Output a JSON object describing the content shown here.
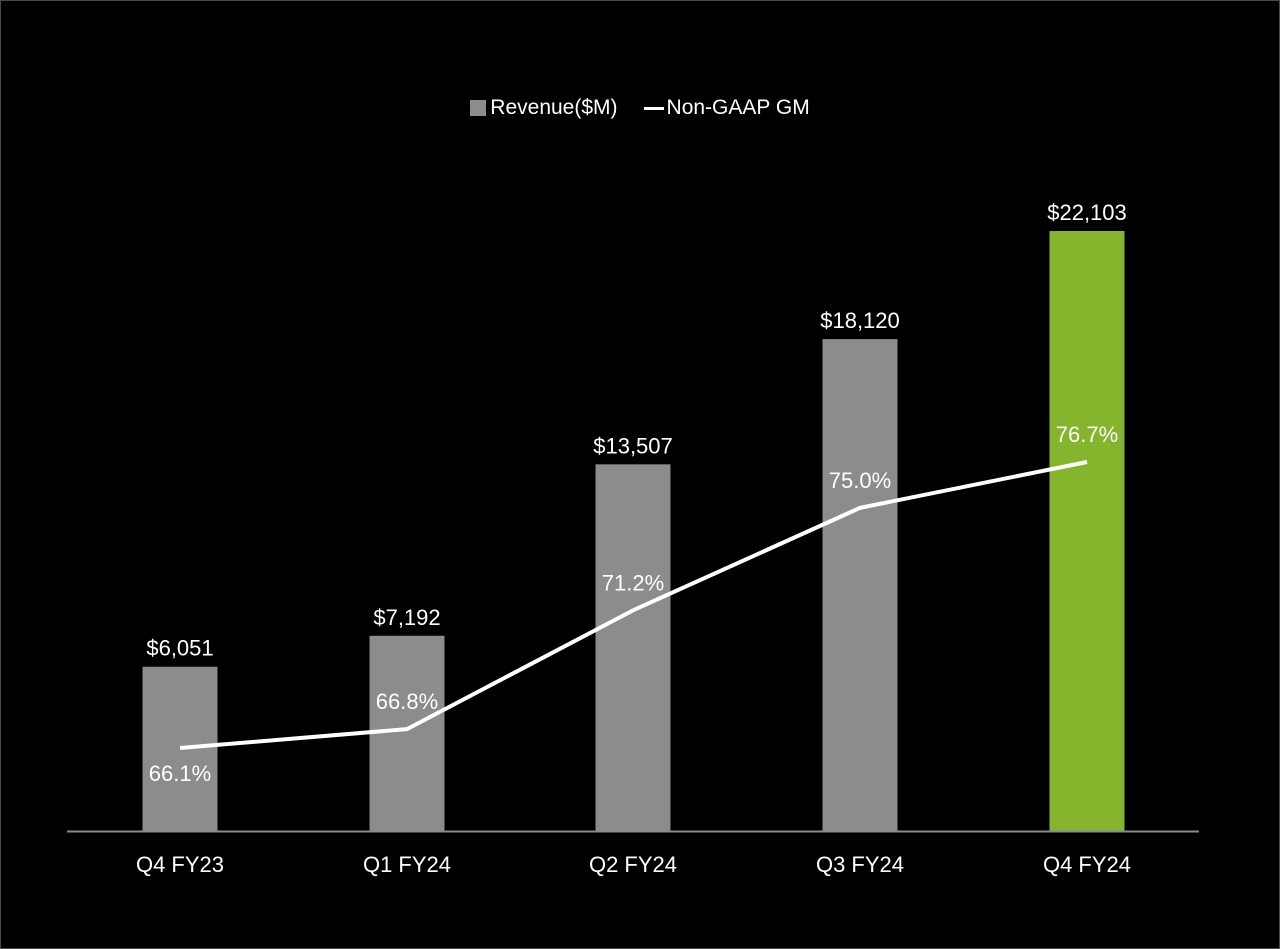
{
  "chart_data": {
    "type": "bar",
    "categories": [
      "Q4 FY23",
      "Q1 FY24",
      "Q2 FY24",
      "Q3 FY24",
      "Q4 FY24"
    ],
    "series": [
      {
        "name": "Revenue($M)",
        "type": "bar",
        "values": [
          6051,
          7192,
          13507,
          18120,
          22103
        ],
        "labels": [
          "$6,051",
          "$7,192",
          "$13,507",
          "$18,120",
          "$22,103"
        ],
        "colors": [
          "#8c8c8c",
          "#8c8c8c",
          "#8c8c8c",
          "#8c8c8c",
          "#84b52c"
        ]
      },
      {
        "name": "Non-GAAP GM",
        "type": "line",
        "values": [
          66.1,
          66.8,
          71.2,
          75.0,
          76.7
        ],
        "labels": [
          "66.1%",
          "66.8%",
          "71.2%",
          "75.0%",
          "76.7%"
        ],
        "color": "#ffffff"
      }
    ],
    "ylim": [
      0,
      24000
    ],
    "y2lim": [
      58,
      80
    ],
    "grid": false,
    "legend": "top-center"
  },
  "colors": {
    "background": "#000000",
    "bar": "#8c8c8c",
    "bar_highlight": "#84b52c",
    "line": "#ffffff",
    "axis": "#8a8a8a",
    "text": "#ffffff"
  }
}
